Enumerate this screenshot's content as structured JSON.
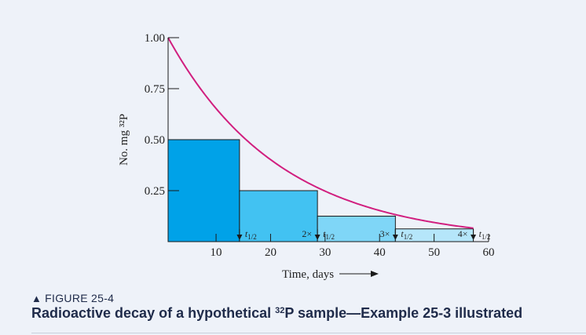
{
  "chart_data": {
    "type": "line",
    "ylabel": "No. mg ³²P",
    "xlabel": "Time, days",
    "xlim": [
      1.2,
      60
    ],
    "ylim": [
      0,
      1.0
    ],
    "x_ticks": [
      10,
      20,
      30,
      40,
      50,
      60
    ],
    "y_ticks": [
      0.25,
      0.5,
      0.75,
      1.0
    ],
    "y_tick_labels": [
      "0.25",
      "0.50",
      "0.75",
      "1.00"
    ],
    "curve": {
      "name": "decay",
      "initial": 1.0,
      "half_life_days": 14.3
    },
    "steps": [
      {
        "x_start": 1.2,
        "x_end": 14.3,
        "value": 0.5,
        "color": "#00a2e8"
      },
      {
        "x_start": 14.3,
        "x_end": 28.6,
        "value": 0.25,
        "color": "#42c2f2"
      },
      {
        "x_start": 28.6,
        "x_end": 42.9,
        "value": 0.125,
        "color": "#7fd6f7"
      },
      {
        "x_start": 42.9,
        "x_end": 57.2,
        "value": 0.0625,
        "color": "#b5e6fa"
      }
    ],
    "annotations": [
      {
        "x": 14.3,
        "prefix": "",
        "label": "t",
        "sub": "1/2"
      },
      {
        "x": 28.6,
        "prefix": "2×",
        "label": "t",
        "sub": "1/2"
      },
      {
        "x": 42.9,
        "prefix": "3×",
        "label": "t",
        "sub": "1/2"
      },
      {
        "x": 57.2,
        "prefix": "4×",
        "label": "t",
        "sub": "1/2"
      }
    ],
    "colors": {
      "curve": "#d11f7f",
      "outline": "#1a1a1a"
    }
  },
  "caption": {
    "figure": "FIGURE 25-4",
    "title_before": "Radioactive decay of a hypothetical ",
    "title_sup": "32",
    "title_after": "P sample—Example 25-3 illustrated"
  }
}
